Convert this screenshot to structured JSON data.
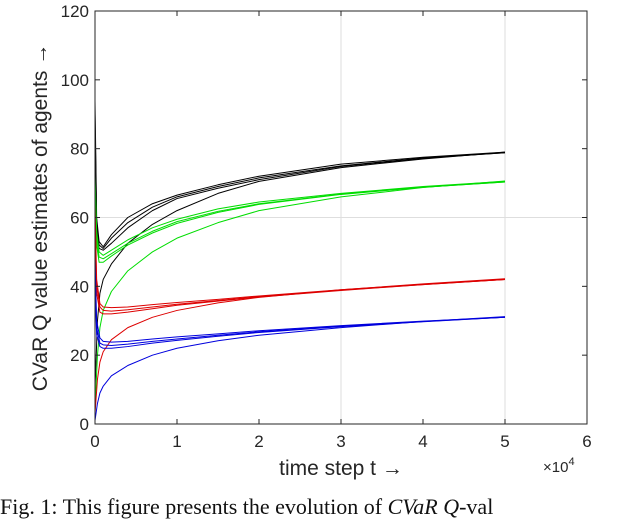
{
  "chart_data": {
    "type": "line",
    "title": "",
    "xlabel": "time step t →",
    "ylabel": "CVaR Q value estimates of agents →",
    "x_multiplier": "×10",
    "x_multiplier_exp": "4",
    "xlim": [
      0,
      6
    ],
    "ylim": [
      0,
      120
    ],
    "xticks": [
      0,
      1,
      2,
      3,
      4,
      5,
      6
    ],
    "yticks": [
      0,
      20,
      40,
      60,
      80,
      100,
      120
    ],
    "grid": true,
    "x_units_note": "x values are in units of 10^4 time steps",
    "series": [
      {
        "color": "#000000",
        "points": [
          [
            0,
            94
          ],
          [
            0.02,
            60
          ],
          [
            0.05,
            53
          ],
          [
            0.1,
            51.5
          ],
          [
            0.2,
            55
          ],
          [
            0.4,
            60
          ],
          [
            0.7,
            64
          ],
          [
            1,
            66.5
          ],
          [
            1.5,
            69.5
          ],
          [
            2,
            72
          ],
          [
            3,
            75.5
          ],
          [
            4,
            77.5
          ],
          [
            5,
            79
          ]
        ]
      },
      {
        "color": "#000000",
        "points": [
          [
            0,
            90
          ],
          [
            0.02,
            58
          ],
          [
            0.05,
            52
          ],
          [
            0.1,
            51
          ],
          [
            0.2,
            54
          ],
          [
            0.4,
            58.5
          ],
          [
            0.7,
            63
          ],
          [
            1,
            66
          ],
          [
            1.5,
            69
          ],
          [
            2,
            71.5
          ],
          [
            3,
            75
          ],
          [
            4,
            77.3
          ],
          [
            5,
            78.8
          ]
        ]
      },
      {
        "color": "#000000",
        "points": [
          [
            0,
            86
          ],
          [
            0.02,
            56
          ],
          [
            0.05,
            51
          ],
          [
            0.1,
            50.5
          ],
          [
            0.2,
            52.5
          ],
          [
            0.4,
            57
          ],
          [
            0.7,
            62
          ],
          [
            1,
            65.5
          ],
          [
            1.5,
            68.5
          ],
          [
            2,
            71
          ],
          [
            3,
            74.8
          ],
          [
            4,
            77.2
          ],
          [
            5,
            78.8
          ]
        ]
      },
      {
        "color": "#000000",
        "points": [
          [
            0,
            10
          ],
          [
            0.03,
            30
          ],
          [
            0.06,
            38
          ],
          [
            0.1,
            42
          ],
          [
            0.2,
            46.5
          ],
          [
            0.4,
            52.5
          ],
          [
            0.7,
            58
          ],
          [
            1,
            62
          ],
          [
            1.5,
            67
          ],
          [
            2,
            70.5
          ],
          [
            3,
            74.5
          ],
          [
            4,
            77
          ],
          [
            5,
            79
          ]
        ]
      },
      {
        "color": "#00dd00",
        "points": [
          [
            0,
            72
          ],
          [
            0.02,
            56
          ],
          [
            0.05,
            50
          ],
          [
            0.1,
            49
          ],
          [
            0.2,
            50.5
          ],
          [
            0.4,
            53.5
          ],
          [
            0.7,
            57
          ],
          [
            1,
            59.5
          ],
          [
            1.5,
            62.5
          ],
          [
            2,
            64.5
          ],
          [
            3,
            67
          ],
          [
            4,
            69
          ],
          [
            5,
            70.5
          ]
        ]
      },
      {
        "color": "#00dd00",
        "points": [
          [
            0,
            70
          ],
          [
            0.02,
            54
          ],
          [
            0.05,
            48.5
          ],
          [
            0.1,
            48
          ],
          [
            0.2,
            49.5
          ],
          [
            0.4,
            52.5
          ],
          [
            0.7,
            56
          ],
          [
            1,
            58.8
          ],
          [
            1.5,
            61.8
          ],
          [
            2,
            64
          ],
          [
            3,
            66.8
          ],
          [
            4,
            68.8
          ],
          [
            5,
            70.3
          ]
        ]
      },
      {
        "color": "#00dd00",
        "points": [
          [
            0,
            66
          ],
          [
            0.02,
            52
          ],
          [
            0.05,
            47
          ],
          [
            0.1,
            47
          ],
          [
            0.2,
            48.8
          ],
          [
            0.4,
            52
          ],
          [
            0.7,
            55.5
          ],
          [
            1,
            58.3
          ],
          [
            1.5,
            61.5
          ],
          [
            2,
            63.8
          ],
          [
            3,
            66.7
          ],
          [
            4,
            68.8
          ],
          [
            5,
            70.3
          ]
        ]
      },
      {
        "color": "#00dd00",
        "points": [
          [
            0,
            4
          ],
          [
            0.03,
            20
          ],
          [
            0.06,
            28
          ],
          [
            0.1,
            33
          ],
          [
            0.2,
            38.5
          ],
          [
            0.4,
            44.5
          ],
          [
            0.7,
            50
          ],
          [
            1,
            54
          ],
          [
            1.5,
            58.5
          ],
          [
            2,
            62
          ],
          [
            3,
            66
          ],
          [
            4,
            68.7
          ],
          [
            5,
            70.6
          ]
        ]
      },
      {
        "color": "#dd0000",
        "points": [
          [
            0,
            64
          ],
          [
            0.02,
            42
          ],
          [
            0.06,
            35
          ],
          [
            0.1,
            34
          ],
          [
            0.2,
            33.8
          ],
          [
            0.4,
            34
          ],
          [
            0.7,
            34.7
          ],
          [
            1,
            35.3
          ],
          [
            1.5,
            36.2
          ],
          [
            2,
            37.2
          ],
          [
            3,
            39
          ],
          [
            4,
            40.6
          ],
          [
            5,
            42
          ]
        ]
      },
      {
        "color": "#dd0000",
        "points": [
          [
            0,
            60
          ],
          [
            0.02,
            40
          ],
          [
            0.06,
            34
          ],
          [
            0.1,
            33
          ],
          [
            0.2,
            32.8
          ],
          [
            0.4,
            33.2
          ],
          [
            0.7,
            34
          ],
          [
            1,
            34.8
          ],
          [
            1.5,
            35.9
          ],
          [
            2,
            37
          ],
          [
            3,
            38.9
          ],
          [
            4,
            40.5
          ],
          [
            5,
            42
          ]
        ]
      },
      {
        "color": "#dd0000",
        "points": [
          [
            0,
            56
          ],
          [
            0.02,
            38
          ],
          [
            0.06,
            32.5
          ],
          [
            0.1,
            32
          ],
          [
            0.2,
            32
          ],
          [
            0.4,
            32.5
          ],
          [
            0.7,
            33.5
          ],
          [
            1,
            34.5
          ],
          [
            1.5,
            35.7
          ],
          [
            2,
            36.9
          ],
          [
            3,
            38.8
          ],
          [
            4,
            40.5
          ],
          [
            5,
            42
          ]
        ]
      },
      {
        "color": "#dd0000",
        "points": [
          [
            0,
            3
          ],
          [
            0.03,
            13
          ],
          [
            0.06,
            18
          ],
          [
            0.1,
            21
          ],
          [
            0.2,
            24.5
          ],
          [
            0.4,
            28
          ],
          [
            0.7,
            31
          ],
          [
            1,
            33
          ],
          [
            1.5,
            35.2
          ],
          [
            2,
            36.8
          ],
          [
            3,
            39
          ],
          [
            4,
            40.7
          ],
          [
            5,
            42.2
          ]
        ]
      },
      {
        "color": "#0000dd",
        "points": [
          [
            0,
            48
          ],
          [
            0.02,
            30
          ],
          [
            0.06,
            25
          ],
          [
            0.1,
            24
          ],
          [
            0.2,
            23.8
          ],
          [
            0.4,
            24
          ],
          [
            0.7,
            24.7
          ],
          [
            1,
            25.3
          ],
          [
            1.5,
            26.2
          ],
          [
            2,
            27.1
          ],
          [
            3,
            28.6
          ],
          [
            4,
            29.9
          ],
          [
            5,
            31
          ]
        ]
      },
      {
        "color": "#0000dd",
        "points": [
          [
            0,
            44
          ],
          [
            0.02,
            28
          ],
          [
            0.06,
            23.5
          ],
          [
            0.1,
            23
          ],
          [
            0.2,
            22.8
          ],
          [
            0.4,
            23.2
          ],
          [
            0.7,
            24
          ],
          [
            1,
            24.7
          ],
          [
            1.5,
            25.8
          ],
          [
            2,
            26.8
          ],
          [
            3,
            28.4
          ],
          [
            4,
            29.8
          ],
          [
            5,
            31
          ]
        ]
      },
      {
        "color": "#0000dd",
        "points": [
          [
            0,
            40
          ],
          [
            0.02,
            26
          ],
          [
            0.06,
            22.5
          ],
          [
            0.1,
            22
          ],
          [
            0.2,
            22
          ],
          [
            0.4,
            22.5
          ],
          [
            0.7,
            23.5
          ],
          [
            1,
            24.3
          ],
          [
            1.5,
            25.5
          ],
          [
            2,
            26.6
          ],
          [
            3,
            28.3
          ],
          [
            4,
            29.7
          ],
          [
            5,
            31
          ]
        ]
      },
      {
        "color": "#0000dd",
        "points": [
          [
            0,
            1
          ],
          [
            0.03,
            6
          ],
          [
            0.06,
            9
          ],
          [
            0.1,
            11
          ],
          [
            0.2,
            14
          ],
          [
            0.4,
            17
          ],
          [
            0.7,
            20
          ],
          [
            1,
            22
          ],
          [
            1.5,
            24.2
          ],
          [
            2,
            25.8
          ],
          [
            3,
            28
          ],
          [
            4,
            29.8
          ],
          [
            5,
            31.2
          ]
        ]
      }
    ]
  },
  "caption": {
    "prefix": "Fig. 1: This figure presents the evolution of ",
    "math": "CVaR Q",
    "suffix": "-val"
  }
}
